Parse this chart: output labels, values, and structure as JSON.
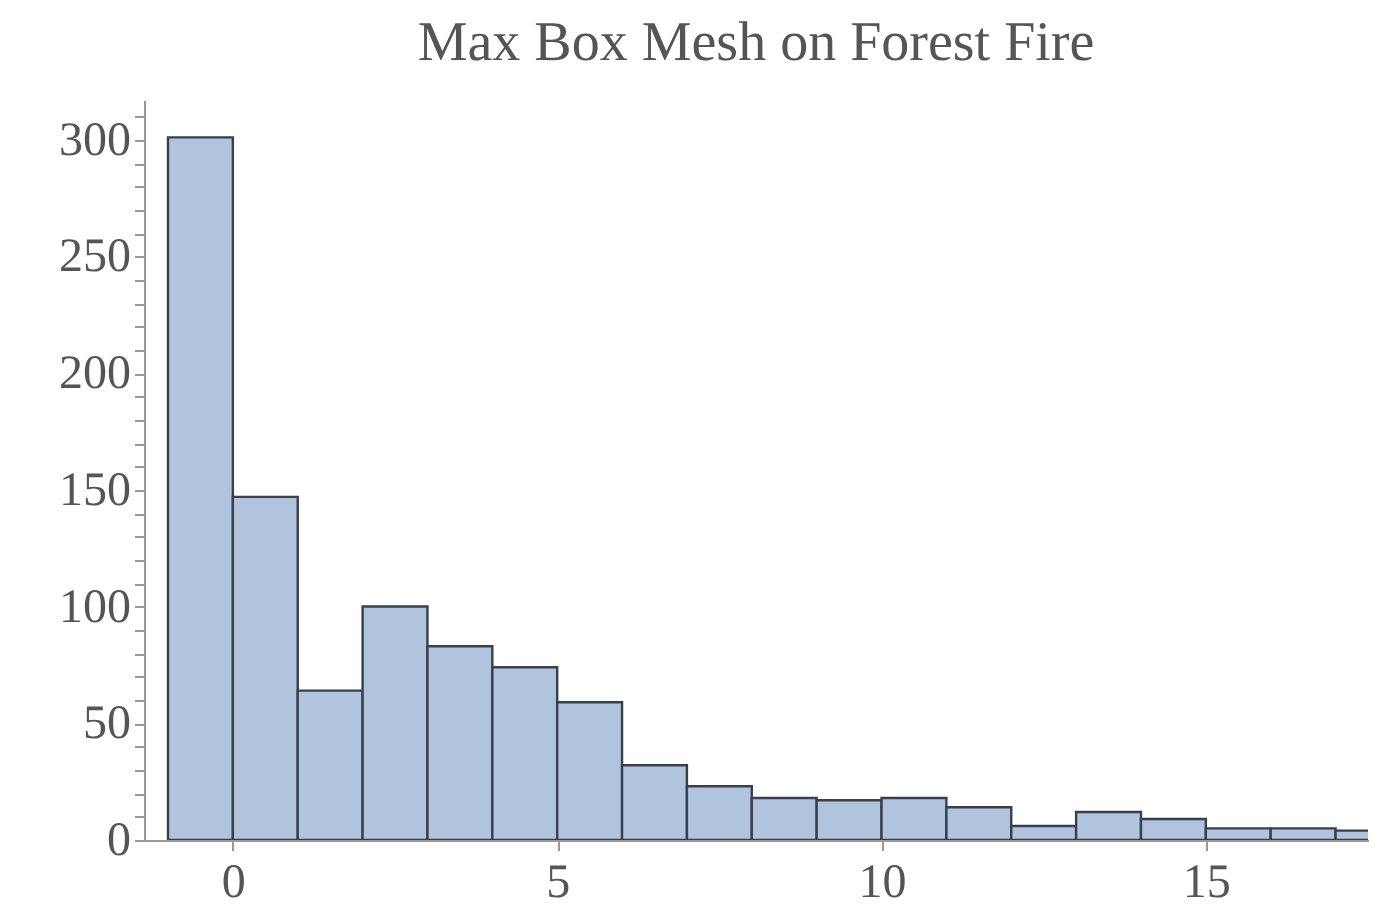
{
  "chart_data": {
    "type": "histogram",
    "title": "Max Box Mesh on Forest Fire",
    "bins": [
      -1,
      0,
      1,
      2,
      3,
      4,
      5,
      6,
      7,
      8,
      9,
      10,
      11,
      12,
      13,
      14,
      15,
      16,
      17,
      18
    ],
    "values": [
      301,
      147,
      64,
      100,
      83,
      74,
      59,
      32,
      23,
      18,
      17,
      18,
      14,
      6,
      12,
      9,
      5,
      5,
      4
    ],
    "color": "#b0c4de",
    "xlim": [
      -1.37,
      17.5
    ],
    "xticks": [
      0,
      5,
      10,
      15
    ],
    "ylim": [
      0,
      317
    ],
    "yticks": [
      0,
      {
        "value": 10,
        "label": null
      },
      {
        "value": 20,
        "label": null
      },
      {
        "value": 30,
        "label": null
      },
      {
        "value": 40,
        "label": null
      },
      50,
      {
        "value": 60,
        "label": null
      },
      {
        "value": 70,
        "label": null
      },
      {
        "value": 80,
        "label": null
      },
      {
        "value": 90,
        "label": null
      },
      100,
      {
        "value": 110,
        "label": null
      },
      {
        "value": 120,
        "label": null
      },
      {
        "value": 130,
        "label": null
      },
      {
        "value": 140,
        "label": null
      },
      150,
      {
        "value": 160,
        "label": null
      },
      {
        "value": 170,
        "label": null
      },
      {
        "value": 180,
        "label": null
      },
      {
        "value": 190,
        "label": null
      },
      200,
      {
        "value": 210,
        "label": null
      },
      {
        "value": 220,
        "label": null
      },
      {
        "value": 230,
        "label": null
      },
      {
        "value": 240,
        "label": null
      },
      250,
      {
        "value": 260,
        "label": null
      },
      {
        "value": 270,
        "label": null
      },
      {
        "value": 280,
        "label": null
      },
      {
        "value": 290,
        "label": null
      },
      300,
      {
        "value": 310,
        "label": null
      }
    ],
    "grid": false
  }
}
